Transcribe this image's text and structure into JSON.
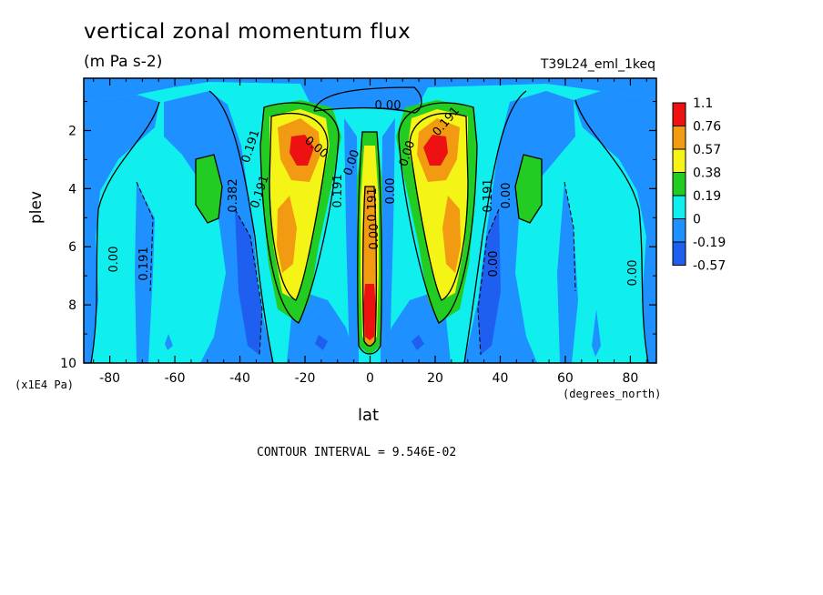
{
  "chart_data": {
    "type": "heatmap",
    "title": "vertical zonal momentum flux",
    "subtitle": "(m Pa s-2)",
    "run_label": "T39L24_eml_1keq",
    "xlabel": "lat",
    "ylabel": "plev",
    "x_units": "(degrees_north)",
    "y_units": "(x1E4 Pa)",
    "xlim": [
      -88,
      88
    ],
    "ylim": [
      10,
      0.2
    ],
    "x_ticks": [
      "-80",
      "-60",
      "-40",
      "-20",
      "0",
      "20",
      "40",
      "60",
      "80"
    ],
    "y_ticks": [
      "2",
      "4",
      "6",
      "8",
      "10"
    ],
    "contour_interval_text": "CONTOUR INTERVAL = 9.546E-02",
    "legend": [
      {
        "label": "1.1",
        "color": "#ee1111"
      },
      {
        "label": "0.76",
        "color": "#f29a12"
      },
      {
        "label": "0.57",
        "color": "#f4f416"
      },
      {
        "label": "0.38",
        "color": "#22cc22"
      },
      {
        "label": "0.19",
        "color": "#11eeee"
      },
      {
        "label": "0",
        "color": "#1e90ff"
      },
      {
        "label": "-0.19",
        "color": "#1f5fef"
      },
      {
        "label": "-0.57",
        "color": ""
      }
    ],
    "contour_labels": [
      "0.00",
      "0.191",
      "0.00",
      "0.191",
      "0.382",
      "0.191",
      "0.00",
      "0.191",
      "0.00",
      "0.00",
      "0.191",
      "0.00",
      "0.00",
      "0.191",
      "0.00",
      "0.00",
      "0.191",
      "0.00"
    ],
    "bands": [
      {
        "value": 0.0,
        "color": "#11eeee"
      },
      {
        "value": -0.19,
        "color": "#1e90ff"
      },
      {
        "value": 0.19,
        "color": "#22cc22"
      },
      {
        "value": 0.38,
        "color": "#f4f416"
      },
      {
        "value": 0.57,
        "color": "#f29a12"
      },
      {
        "value": 0.76,
        "color": "#ee1111"
      },
      {
        "value": -0.57,
        "color": "#1f5fef"
      }
    ]
  }
}
